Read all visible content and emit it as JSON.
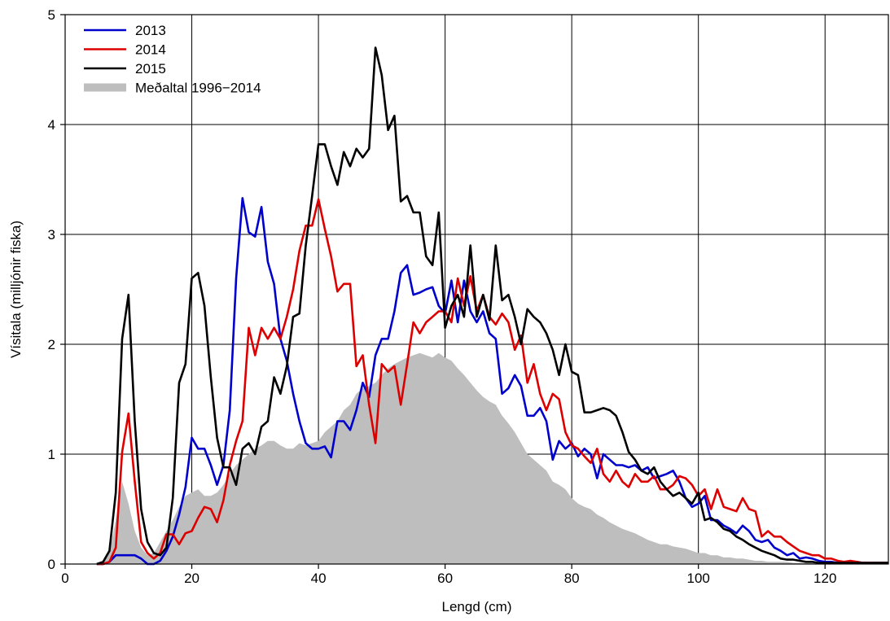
{
  "chart_data": {
    "type": "line",
    "title": "",
    "xlabel": "Lengd (cm)",
    "ylabel": "Vísitala (milljónir fiska)",
    "xlim": [
      0,
      130
    ],
    "ylim": [
      0,
      5
    ],
    "xticks": [
      0,
      20,
      40,
      60,
      80,
      100,
      120
    ],
    "yticks": [
      0,
      1,
      2,
      3,
      4,
      5
    ],
    "grid": true,
    "legend_position": "top-left",
    "series": [
      {
        "name": "2013",
        "kind": "line",
        "color": "#0000cc",
        "x": [
          5,
          6,
          7,
          8,
          9,
          10,
          11,
          12,
          13,
          14,
          15,
          16,
          17,
          18,
          19,
          20,
          21,
          22,
          23,
          24,
          25,
          26,
          27,
          28,
          29,
          30,
          31,
          32,
          33,
          34,
          35,
          36,
          37,
          38,
          39,
          40,
          41,
          42,
          43,
          44,
          45,
          46,
          47,
          48,
          49,
          50,
          51,
          52,
          53,
          54,
          55,
          56,
          57,
          58,
          59,
          60,
          61,
          62,
          63,
          64,
          65,
          66,
          67,
          68,
          69,
          70,
          71,
          72,
          73,
          74,
          75,
          76,
          77,
          78,
          79,
          80,
          81,
          82,
          83,
          84,
          85,
          86,
          87,
          88,
          89,
          90,
          91,
          92,
          93,
          94,
          95,
          96,
          97,
          98,
          99,
          100,
          101,
          102,
          103,
          104,
          105,
          106,
          107,
          108,
          109,
          110,
          111,
          112,
          113,
          114,
          115,
          116,
          117,
          118,
          119,
          120,
          121,
          122,
          123,
          124,
          125,
          126,
          127,
          128,
          129,
          130
        ],
        "values": [
          0,
          0,
          0.02,
          0.08,
          0.08,
          0.08,
          0.08,
          0.05,
          0,
          0,
          0.03,
          0.12,
          0.25,
          0.45,
          0.7,
          1.15,
          1.05,
          1.05,
          0.9,
          0.72,
          0.9,
          1.4,
          2.6,
          3.33,
          3.02,
          2.98,
          3.25,
          2.75,
          2.55,
          2.05,
          1.85,
          1.55,
          1.3,
          1.1,
          1.05,
          1.05,
          1.07,
          0.97,
          1.3,
          1.3,
          1.22,
          1.4,
          1.65,
          1.52,
          1.9,
          2.05,
          2.05,
          2.3,
          2.65,
          2.72,
          2.45,
          2.47,
          2.5,
          2.52,
          2.35,
          2.28,
          2.58,
          2.2,
          2.58,
          2.3,
          2.2,
          2.3,
          2.1,
          2.05,
          1.55,
          1.6,
          1.72,
          1.62,
          1.35,
          1.35,
          1.42,
          1.3,
          0.95,
          1.12,
          1.05,
          1.1,
          0.98,
          1.05,
          1.0,
          0.78,
          1.0,
          0.95,
          0.9,
          0.9,
          0.88,
          0.9,
          0.85,
          0.88,
          0.78,
          0.8,
          0.82,
          0.85,
          0.75,
          0.6,
          0.52,
          0.55,
          0.62,
          0.4,
          0.4,
          0.35,
          0.32,
          0.28,
          0.35,
          0.3,
          0.22,
          0.2,
          0.22,
          0.15,
          0.12,
          0.08,
          0.1,
          0.05,
          0.06,
          0.05,
          0.03,
          0.02,
          0.02,
          0.01,
          0.01,
          0.01,
          0.02,
          0.01,
          0.01,
          0.01,
          0.01,
          0.01
        ]
      },
      {
        "name": "2014",
        "kind": "line",
        "color": "#dd0000",
        "x": [
          5,
          6,
          7,
          8,
          9,
          10,
          11,
          12,
          13,
          14,
          15,
          16,
          17,
          18,
          19,
          20,
          21,
          22,
          23,
          24,
          25,
          26,
          27,
          28,
          29,
          30,
          31,
          32,
          33,
          34,
          35,
          36,
          37,
          38,
          39,
          40,
          41,
          42,
          43,
          44,
          45,
          46,
          47,
          48,
          49,
          50,
          51,
          52,
          53,
          54,
          55,
          56,
          57,
          58,
          59,
          60,
          61,
          62,
          63,
          64,
          65,
          66,
          67,
          68,
          69,
          70,
          71,
          72,
          73,
          74,
          75,
          76,
          77,
          78,
          79,
          80,
          81,
          82,
          83,
          84,
          85,
          86,
          87,
          88,
          89,
          90,
          91,
          92,
          93,
          94,
          95,
          96,
          97,
          98,
          99,
          100,
          101,
          102,
          103,
          104,
          105,
          106,
          107,
          108,
          109,
          110,
          111,
          112,
          113,
          114,
          115,
          116,
          117,
          118,
          119,
          120,
          121,
          122,
          123,
          124,
          125,
          126,
          127,
          128,
          129,
          130
        ],
        "values": [
          0,
          0,
          0.02,
          0.15,
          1.02,
          1.37,
          0.75,
          0.2,
          0.1,
          0.05,
          0.1,
          0.27,
          0.27,
          0.18,
          0.28,
          0.3,
          0.42,
          0.52,
          0.5,
          0.38,
          0.58,
          0.9,
          1.12,
          1.3,
          2.15,
          1.9,
          2.15,
          2.05,
          2.15,
          2.05,
          2.25,
          2.5,
          2.85,
          3.08,
          3.08,
          3.32,
          3.05,
          2.8,
          2.48,
          2.55,
          2.55,
          1.8,
          1.9,
          1.45,
          1.1,
          1.82,
          1.75,
          1.8,
          1.45,
          1.82,
          2.2,
          2.1,
          2.2,
          2.25,
          2.3,
          2.3,
          2.2,
          2.6,
          2.35,
          2.62,
          2.3,
          2.45,
          2.25,
          2.18,
          2.28,
          2.2,
          1.95,
          2.08,
          1.65,
          1.82,
          1.55,
          1.4,
          1.55,
          1.5,
          1.2,
          1.08,
          1.05,
          0.98,
          0.92,
          1.05,
          0.82,
          0.75,
          0.85,
          0.75,
          0.7,
          0.82,
          0.75,
          0.75,
          0.8,
          0.68,
          0.68,
          0.72,
          0.8,
          0.78,
          0.72,
          0.62,
          0.68,
          0.5,
          0.68,
          0.52,
          0.5,
          0.48,
          0.6,
          0.5,
          0.48,
          0.25,
          0.3,
          0.25,
          0.25,
          0.2,
          0.16,
          0.12,
          0.1,
          0.08,
          0.08,
          0.05,
          0.05,
          0.03,
          0.02,
          0.03,
          0.02,
          0.01,
          0.01,
          0.01,
          0.01,
          0.01
        ]
      },
      {
        "name": "2015",
        "kind": "line",
        "color": "#000000",
        "x": [
          5,
          6,
          7,
          8,
          9,
          10,
          11,
          12,
          13,
          14,
          15,
          16,
          17,
          18,
          19,
          20,
          21,
          22,
          23,
          24,
          25,
          26,
          27,
          28,
          29,
          30,
          31,
          32,
          33,
          34,
          35,
          36,
          37,
          38,
          39,
          40,
          41,
          42,
          43,
          44,
          45,
          46,
          47,
          48,
          49,
          50,
          51,
          52,
          53,
          54,
          55,
          56,
          57,
          58,
          59,
          60,
          61,
          62,
          63,
          64,
          65,
          66,
          67,
          68,
          69,
          70,
          71,
          72,
          73,
          74,
          75,
          76,
          77,
          78,
          79,
          80,
          81,
          82,
          83,
          84,
          85,
          86,
          87,
          88,
          89,
          90,
          91,
          92,
          93,
          94,
          95,
          96,
          97,
          98,
          99,
          100,
          101,
          102,
          103,
          104,
          105,
          106,
          107,
          108,
          109,
          110,
          111,
          112,
          113,
          114,
          115,
          116,
          117,
          118,
          119,
          120,
          121,
          122,
          123,
          124,
          125,
          126,
          127,
          128,
          129,
          130
        ],
        "values": [
          0,
          0.02,
          0.12,
          0.65,
          2.05,
          2.45,
          1.3,
          0.5,
          0.2,
          0.1,
          0.08,
          0.15,
          0.6,
          1.65,
          1.82,
          2.6,
          2.65,
          2.35,
          1.7,
          1.15,
          0.88,
          0.88,
          0.72,
          1.05,
          1.1,
          1.0,
          1.25,
          1.3,
          1.7,
          1.55,
          1.8,
          2.25,
          2.28,
          2.9,
          3.35,
          3.82,
          3.82,
          3.62,
          3.45,
          3.75,
          3.62,
          3.78,
          3.7,
          3.78,
          4.7,
          4.45,
          3.95,
          4.08,
          3.3,
          3.35,
          3.2,
          3.2,
          2.8,
          2.72,
          3.2,
          2.15,
          2.35,
          2.45,
          2.25,
          2.9,
          2.25,
          2.45,
          2.22,
          2.9,
          2.4,
          2.45,
          2.25,
          2.0,
          2.32,
          2.25,
          2.2,
          2.1,
          1.95,
          1.72,
          2.0,
          1.75,
          1.72,
          1.38,
          1.38,
          1.4,
          1.42,
          1.4,
          1.35,
          1.2,
          1.02,
          0.95,
          0.85,
          0.82,
          0.88,
          0.75,
          0.68,
          0.62,
          0.65,
          0.6,
          0.55,
          0.65,
          0.4,
          0.42,
          0.38,
          0.32,
          0.3,
          0.25,
          0.22,
          0.18,
          0.15,
          0.12,
          0.1,
          0.08,
          0.05,
          0.04,
          0.04,
          0.03,
          0.02,
          0.02,
          0.01,
          0.01,
          0.01,
          0.01,
          0.01,
          0.01,
          0.01,
          0.01,
          0.01,
          0.01,
          0.01,
          0.01
        ]
      },
      {
        "name": "Meðaltal 1996−2014",
        "kind": "area",
        "color": "#bebebe",
        "x": [
          5,
          6,
          7,
          8,
          9,
          10,
          11,
          12,
          13,
          14,
          15,
          16,
          17,
          18,
          19,
          20,
          21,
          22,
          23,
          24,
          25,
          26,
          27,
          28,
          29,
          30,
          31,
          32,
          33,
          34,
          35,
          36,
          37,
          38,
          39,
          40,
          41,
          42,
          43,
          44,
          45,
          46,
          47,
          48,
          49,
          50,
          51,
          52,
          53,
          54,
          55,
          56,
          57,
          58,
          59,
          60,
          61,
          62,
          63,
          64,
          65,
          66,
          67,
          68,
          69,
          70,
          71,
          72,
          73,
          74,
          75,
          76,
          77,
          78,
          79,
          80,
          81,
          82,
          83,
          84,
          85,
          86,
          87,
          88,
          89,
          90,
          91,
          92,
          93,
          94,
          95,
          96,
          97,
          98,
          99,
          100,
          101,
          102,
          103,
          104,
          105,
          106,
          107,
          108,
          109,
          110,
          111,
          112,
          113,
          114,
          115,
          116,
          117,
          118,
          119,
          120,
          121,
          122,
          123,
          124,
          125,
          126,
          127,
          128,
          129,
          130
        ],
        "values": [
          0,
          0.02,
          0.1,
          0.4,
          0.75,
          0.55,
          0.3,
          0.15,
          0.08,
          0.1,
          0.2,
          0.3,
          0.4,
          0.52,
          0.62,
          0.65,
          0.68,
          0.62,
          0.62,
          0.65,
          0.72,
          0.82,
          0.9,
          0.95,
          1.0,
          1.05,
          1.08,
          1.12,
          1.12,
          1.08,
          1.05,
          1.05,
          1.1,
          1.08,
          1.1,
          1.12,
          1.2,
          1.25,
          1.3,
          1.4,
          1.45,
          1.55,
          1.6,
          1.62,
          1.65,
          1.72,
          1.78,
          1.82,
          1.85,
          1.88,
          1.9,
          1.92,
          1.9,
          1.88,
          1.92,
          1.88,
          1.85,
          1.78,
          1.72,
          1.65,
          1.58,
          1.52,
          1.48,
          1.45,
          1.35,
          1.28,
          1.2,
          1.1,
          1.0,
          0.95,
          0.9,
          0.85,
          0.75,
          0.72,
          0.68,
          0.6,
          0.55,
          0.52,
          0.5,
          0.45,
          0.42,
          0.38,
          0.35,
          0.32,
          0.3,
          0.28,
          0.25,
          0.22,
          0.2,
          0.18,
          0.18,
          0.16,
          0.15,
          0.14,
          0.12,
          0.1,
          0.1,
          0.08,
          0.08,
          0.06,
          0.06,
          0.05,
          0.05,
          0.04,
          0.03,
          0.03,
          0.02,
          0.02,
          0.02,
          0.02,
          0.01,
          0.01,
          0.01,
          0.01,
          0.01,
          0.01,
          0.01,
          0.01,
          0.01,
          0.01,
          0.01,
          0.01,
          0.01,
          0.01,
          0.01,
          0.01
        ]
      }
    ]
  }
}
